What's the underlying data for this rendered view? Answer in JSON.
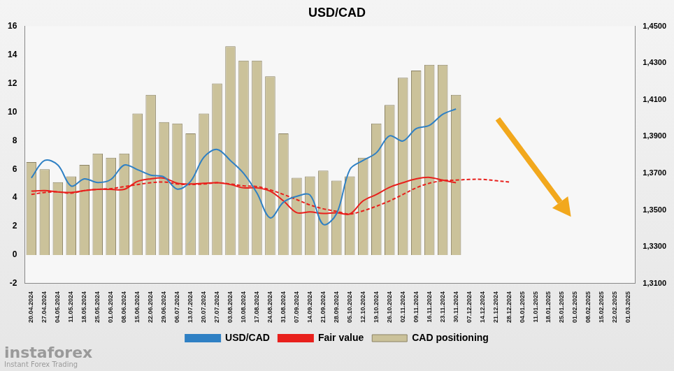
{
  "chart_data": {
    "type": "bar",
    "title": "USD/CAD",
    "categories": [
      "20.04.2024",
      "27.04.2024",
      "04.05.2024",
      "11.05.2024",
      "18.05.2024",
      "25.05.2024",
      "01.06.2024",
      "08.06.2024",
      "15.06.2024",
      "22.06.2024",
      "29.06.2024",
      "06.07.2024",
      "13.07.2024",
      "20.07.2024",
      "27.07.2024",
      "03.08.2024",
      "10.08.2024",
      "17.08.2024",
      "24.08.2024",
      "31.08.2024",
      "07.09.2024",
      "14.09.2024",
      "21.09.2024",
      "28.09.2024",
      "05.10.2024",
      "12.10.2024",
      "19.10.2024",
      "26.10.2024",
      "02.11.2024",
      "09.11.2024",
      "16.11.2024",
      "23.11.2024",
      "30.11.2024",
      "07.12.2024",
      "14.12.2024",
      "21.12.2024",
      "28.12.2024",
      "04.01.2025",
      "11.01.2025",
      "18.01.2025",
      "25.01.2025",
      "01.02.2025",
      "08.02.2025",
      "15.02.2025",
      "22.02.2025",
      "01.03.2025"
    ],
    "series": [
      {
        "name": "CAD positioning",
        "type": "bar",
        "color": "#cbc29a",
        "values": [
          6.5,
          6.0,
          5.1,
          5.5,
          6.3,
          7.1,
          6.8,
          7.1,
          9.9,
          11.2,
          9.3,
          9.2,
          8.5,
          9.9,
          12.0,
          14.6,
          13.6,
          13.6,
          12.5,
          8.5,
          5.4,
          5.5,
          5.9,
          5.2,
          5.5,
          6.8,
          9.2,
          10.5,
          12.4,
          12.9,
          13.3,
          13.3,
          11.2,
          null,
          null,
          null,
          null,
          null,
          null,
          null,
          null,
          null,
          null,
          null,
          null,
          null
        ]
      },
      {
        "name": "USD/CAD",
        "type": "line",
        "color": "#2f80c4",
        "axis": "y2",
        "values": [
          1.3675,
          1.377,
          1.3745,
          1.3631,
          1.367,
          1.365,
          1.3667,
          1.3745,
          1.372,
          1.369,
          1.368,
          1.3614,
          1.3656,
          1.3787,
          1.383,
          1.377,
          1.37,
          1.3593,
          1.3458,
          1.3543,
          1.3575,
          1.3582,
          1.3422,
          1.348,
          1.372,
          1.377,
          1.3812,
          1.3904,
          1.3876,
          1.3943,
          1.3961,
          1.4021,
          1.405,
          null,
          null,
          null,
          null,
          null,
          null,
          null,
          null,
          null,
          null,
          null,
          null,
          null
        ]
      },
      {
        "name": "Fair value",
        "type": "line",
        "color": "#e8201c",
        "axis": "y2",
        "line_style": "solid",
        "values": [
          1.3603,
          1.3606,
          1.3599,
          1.3596,
          1.3606,
          1.3613,
          1.3613,
          1.3613,
          1.3656,
          1.367,
          1.3674,
          1.3646,
          1.3642,
          1.3646,
          1.3649,
          1.3639,
          1.3621,
          1.3621,
          1.3603,
          1.355,
          1.3486,
          1.349,
          1.3482,
          1.3486,
          1.3479,
          1.355,
          1.3585,
          1.3624,
          1.3649,
          1.367,
          1.3678,
          1.3663,
          1.3649,
          null,
          null,
          null,
          null,
          null,
          null,
          null,
          null,
          null,
          null,
          null,
          null,
          null
        ]
      },
      {
        "name": "Fair value",
        "type": "line",
        "color": "#e8201c",
        "axis": "y2",
        "line_style": "dashed",
        "values": [
          1.3585,
          1.3596,
          1.3599,
          1.3592,
          1.3606,
          1.3613,
          1.3617,
          1.3628,
          1.3639,
          1.3649,
          1.3653,
          1.3642,
          1.3639,
          1.3642,
          1.3649,
          1.3642,
          1.3632,
          1.3628,
          1.361,
          1.3585,
          1.3557,
          1.3528,
          1.3507,
          1.3493,
          1.3479,
          1.3496,
          1.3521,
          1.355,
          1.3585,
          1.3621,
          1.3646,
          1.366,
          1.3663,
          1.3667,
          1.3667,
          1.366,
          1.3653,
          null,
          null,
          null,
          null,
          null,
          null,
          null,
          null,
          null
        ]
      }
    ],
    "ylim": [
      -2,
      16
    ],
    "yticks": [
      -2,
      0,
      2,
      4,
      6,
      8,
      10,
      12,
      14,
      16
    ],
    "y2lim": [
      1.31,
      1.45
    ],
    "y2ticks": [
      {
        "value": 1.31,
        "label": "1,3100"
      },
      {
        "value": 1.33,
        "label": "1,3300"
      },
      {
        "value": 1.35,
        "label": "1,3500"
      },
      {
        "value": 1.37,
        "label": "1,3700"
      },
      {
        "value": 1.39,
        "label": "1,3900"
      },
      {
        "value": 1.41,
        "label": "1,4100"
      },
      {
        "value": 1.43,
        "label": "1,4300"
      },
      {
        "value": 1.45,
        "label": "1,4500"
      }
    ],
    "grid": false,
    "legend": "bottom",
    "annotations": [
      "instaforex",
      "Instant Forex Trading"
    ]
  }
}
